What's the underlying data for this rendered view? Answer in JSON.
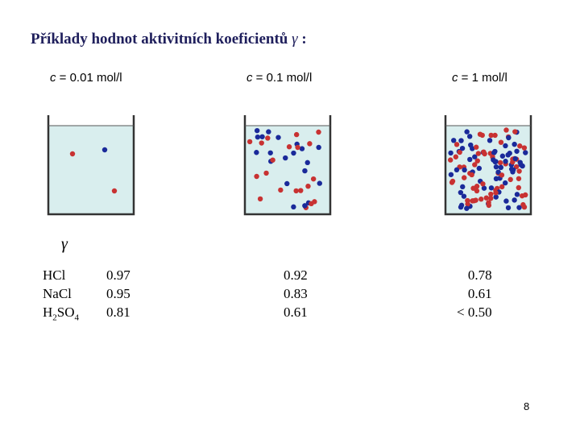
{
  "slide": {
    "title_text": "Příklady hodnot aktivitních koeficientů ",
    "title_symbol": "γ",
    "title_suffix": " :",
    "page_number": "8"
  },
  "concentrations": [
    {
      "symbol": "c",
      "rest": " = 0.01 mol/l"
    },
    {
      "symbol": "c",
      "rest": " = 0.1 mol/l"
    },
    {
      "symbol": "c",
      "rest": " = 1 mol/l"
    }
  ],
  "particle_counts": [
    3,
    40,
    130
  ],
  "colors": {
    "cation": "#c83232",
    "anion": "#1a2a9a",
    "solution": "#d9eeee",
    "wall": "#333333"
  },
  "table": {
    "symbol": "γ",
    "salts": [
      {
        "name": "HCl",
        "sub": "",
        "tail": ""
      },
      {
        "name": "NaCl",
        "sub": "",
        "tail": ""
      },
      {
        "name": "H",
        "sub": "2",
        "tail": "SO",
        "sub2": "4"
      }
    ],
    "values": [
      [
        "0.97",
        "0.95",
        "0.81"
      ],
      [
        "0.92",
        "0.83",
        "0.61"
      ],
      [
        "0.78",
        "0.61",
        "< 0.50"
      ]
    ]
  }
}
